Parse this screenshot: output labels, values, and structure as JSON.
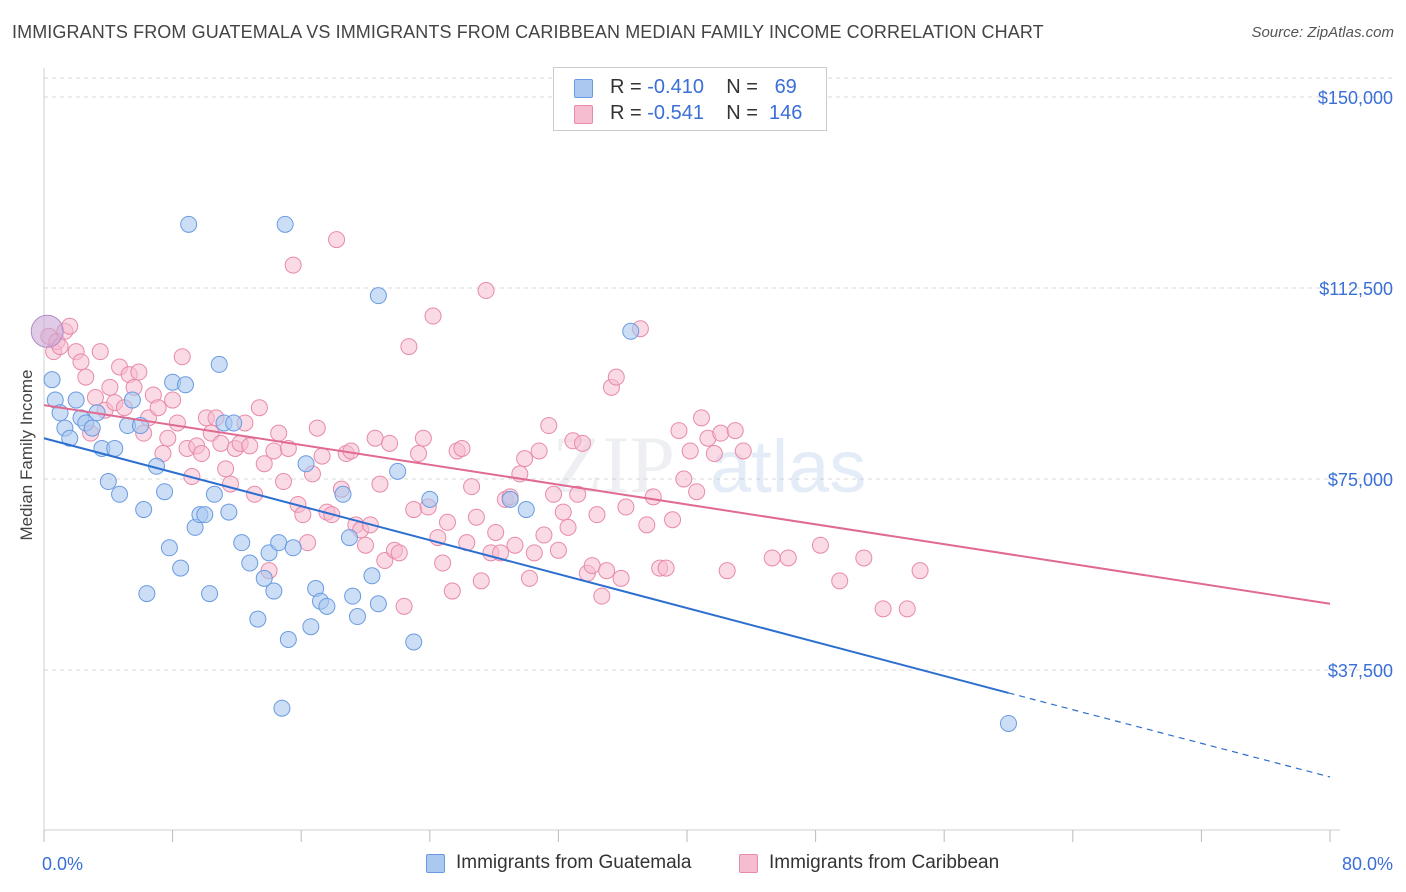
{
  "header": {
    "title": "IMMIGRANTS FROM GUATEMALA VS IMMIGRANTS FROM CARIBBEAN MEDIAN FAMILY INCOME CORRELATION CHART",
    "source": "Source: ZipAtlas.com"
  },
  "legend": {
    "row1": {
      "r_label": "R =",
      "r_value": "-0.410",
      "n_label": "N =",
      "n_value": "69"
    },
    "row2": {
      "r_label": "R =",
      "r_value": "-0.541",
      "n_label": "N =",
      "n_value": "146"
    }
  },
  "bottom_legend": {
    "guatemala": "Immigrants from Guatemala",
    "caribbean": "Immigrants from Caribbean"
  },
  "watermark": {
    "zip": "ZIP",
    "atlas": "atlas"
  },
  "colors": {
    "guatemala_fill": "#aac8f0",
    "guatemala_stroke": "#6a9be0",
    "guatemala_line": "#2d6fcf",
    "caribbean_fill": "#f6bcd0",
    "caribbean_stroke": "#e88aaa",
    "caribbean_line": "#e06a92",
    "axis_label": "#3a6fd8"
  },
  "chart_data": {
    "type": "scatter",
    "title": "IMMIGRANTS FROM GUATEMALA VS IMMIGRANTS FROM CARIBBEAN MEDIAN FAMILY INCOME CORRELATION CHART",
    "xlabel": "",
    "ylabel": "Median Family Income",
    "xlim": [
      0,
      80
    ],
    "ylim": [
      0,
      155000
    ],
    "x_tick_labels": [
      "0.0%",
      "80.0%"
    ],
    "y_ticks": [
      37500,
      75000,
      112500,
      150000
    ],
    "y_tick_labels": [
      "$37,500",
      "$75,000",
      "$112,500",
      "$150,000"
    ],
    "grid": "horizontal dashed",
    "legend_position": "top-center",
    "series": [
      {
        "name": "Immigrants from Guatemala",
        "R": -0.41,
        "N": 69,
        "trend": {
          "x0": 0,
          "y0": 83000,
          "x1": 60,
          "y1": 33000,
          "dashed_to_x": 80,
          "dashed_to_y": 16500
        },
        "points": [
          [
            0.2,
            104000
          ],
          [
            0.5,
            94500
          ],
          [
            0.7,
            90500
          ],
          [
            1.0,
            88000
          ],
          [
            1.3,
            85000
          ],
          [
            1.6,
            83000
          ],
          [
            2.0,
            90500
          ],
          [
            2.3,
            87000
          ],
          [
            2.6,
            86000
          ],
          [
            3.0,
            85000
          ],
          [
            3.3,
            88000
          ],
          [
            3.6,
            81000
          ],
          [
            4.0,
            74500
          ],
          [
            4.4,
            81000
          ],
          [
            4.7,
            72000
          ],
          [
            5.2,
            85500
          ],
          [
            5.5,
            90500
          ],
          [
            6.0,
            85500
          ],
          [
            6.2,
            69000
          ],
          [
            6.4,
            52500
          ],
          [
            7.0,
            77500
          ],
          [
            7.5,
            72500
          ],
          [
            7.8,
            61500
          ],
          [
            8.0,
            94000
          ],
          [
            8.5,
            57500
          ],
          [
            8.8,
            93500
          ],
          [
            9.0,
            125000
          ],
          [
            9.4,
            65500
          ],
          [
            9.7,
            68000
          ],
          [
            10.0,
            68000
          ],
          [
            10.3,
            52500
          ],
          [
            10.6,
            72000
          ],
          [
            10.9,
            97500
          ],
          [
            11.2,
            86000
          ],
          [
            11.5,
            68500
          ],
          [
            11.8,
            86000
          ],
          [
            12.3,
            62500
          ],
          [
            12.8,
            58500
          ],
          [
            13.3,
            47500
          ],
          [
            13.7,
            55500
          ],
          [
            14.0,
            60500
          ],
          [
            14.3,
            53000
          ],
          [
            14.6,
            62500
          ],
          [
            14.8,
            30000
          ],
          [
            15.0,
            125000
          ],
          [
            15.2,
            43500
          ],
          [
            15.5,
            61500
          ],
          [
            16.3,
            78000
          ],
          [
            16.6,
            46000
          ],
          [
            16.9,
            53500
          ],
          [
            17.2,
            51000
          ],
          [
            17.6,
            50000
          ],
          [
            18.6,
            72000
          ],
          [
            19.0,
            63500
          ],
          [
            19.2,
            52000
          ],
          [
            19.5,
            48000
          ],
          [
            20.4,
            56000
          ],
          [
            20.8,
            111000
          ],
          [
            20.8,
            50500
          ],
          [
            22.0,
            76500
          ],
          [
            23.0,
            43000
          ],
          [
            24.0,
            71000
          ],
          [
            29.0,
            71000
          ],
          [
            30.0,
            69000
          ],
          [
            36.5,
            104000
          ],
          [
            60.0,
            27000
          ]
        ]
      },
      {
        "name": "Immigrants from Caribbean",
        "R": -0.541,
        "N": 146,
        "trend": {
          "x0": 0,
          "y0": 89500,
          "x1": 80,
          "y1": 50500
        },
        "points": [
          [
            0.3,
            103000
          ],
          [
            0.6,
            100000
          ],
          [
            0.8,
            102000
          ],
          [
            1.0,
            101000
          ],
          [
            1.3,
            104000
          ],
          [
            1.6,
            105000
          ],
          [
            2.0,
            100000
          ],
          [
            2.3,
            98000
          ],
          [
            2.6,
            95000
          ],
          [
            2.9,
            84000
          ],
          [
            3.2,
            91000
          ],
          [
            3.5,
            100000
          ],
          [
            3.8,
            88500
          ],
          [
            4.1,
            93000
          ],
          [
            4.4,
            90000
          ],
          [
            4.7,
            97000
          ],
          [
            5.0,
            89000
          ],
          [
            5.3,
            95500
          ],
          [
            5.6,
            93000
          ],
          [
            5.9,
            96000
          ],
          [
            6.2,
            84000
          ],
          [
            6.5,
            87000
          ],
          [
            6.8,
            91500
          ],
          [
            7.1,
            89000
          ],
          [
            7.4,
            80000
          ],
          [
            7.7,
            83000
          ],
          [
            8.0,
            90500
          ],
          [
            8.3,
            86000
          ],
          [
            8.6,
            99000
          ],
          [
            8.9,
            81000
          ],
          [
            9.2,
            75500
          ],
          [
            9.5,
            81500
          ],
          [
            9.8,
            80000
          ],
          [
            10.1,
            87000
          ],
          [
            10.4,
            84000
          ],
          [
            10.7,
            87000
          ],
          [
            11.0,
            82000
          ],
          [
            11.3,
            77000
          ],
          [
            11.6,
            74000
          ],
          [
            11.9,
            81000
          ],
          [
            12.2,
            82000
          ],
          [
            12.5,
            86000
          ],
          [
            12.8,
            81500
          ],
          [
            13.1,
            72000
          ],
          [
            13.4,
            89000
          ],
          [
            13.7,
            78000
          ],
          [
            14.0,
            57000
          ],
          [
            14.3,
            80500
          ],
          [
            14.6,
            84000
          ],
          [
            14.9,
            74500
          ],
          [
            15.2,
            81000
          ],
          [
            15.5,
            117000
          ],
          [
            15.8,
            70000
          ],
          [
            16.1,
            68000
          ],
          [
            16.4,
            62500
          ],
          [
            16.7,
            76000
          ],
          [
            17.0,
            85000
          ],
          [
            17.3,
            79500
          ],
          [
            17.6,
            68500
          ],
          [
            17.9,
            68000
          ],
          [
            18.2,
            122000
          ],
          [
            18.5,
            73000
          ],
          [
            18.8,
            80000
          ],
          [
            19.1,
            80500
          ],
          [
            19.4,
            66000
          ],
          [
            19.7,
            65000
          ],
          [
            20.0,
            62000
          ],
          [
            20.3,
            66000
          ],
          [
            20.6,
            83000
          ],
          [
            20.9,
            74000
          ],
          [
            21.2,
            59000
          ],
          [
            21.5,
            82000
          ],
          [
            21.8,
            61000
          ],
          [
            22.1,
            60500
          ],
          [
            22.4,
            50000
          ],
          [
            22.7,
            101000
          ],
          [
            23.0,
            69000
          ],
          [
            23.3,
            80000
          ],
          [
            23.6,
            83000
          ],
          [
            23.9,
            69500
          ],
          [
            24.2,
            107000
          ],
          [
            24.5,
            63500
          ],
          [
            24.8,
            58500
          ],
          [
            25.1,
            66500
          ],
          [
            25.4,
            53000
          ],
          [
            25.7,
            80500
          ],
          [
            26.0,
            81000
          ],
          [
            26.3,
            62500
          ],
          [
            26.6,
            73500
          ],
          [
            26.9,
            67500
          ],
          [
            27.2,
            55000
          ],
          [
            27.5,
            112000
          ],
          [
            27.8,
            60500
          ],
          [
            28.1,
            64500
          ],
          [
            28.4,
            60500
          ],
          [
            28.7,
            71000
          ],
          [
            29.0,
            71500
          ],
          [
            29.3,
            62000
          ],
          [
            29.6,
            76000
          ],
          [
            29.9,
            79000
          ],
          [
            30.2,
            55500
          ],
          [
            30.5,
            60500
          ],
          [
            30.8,
            80500
          ],
          [
            31.1,
            64000
          ],
          [
            31.4,
            85500
          ],
          [
            31.7,
            72000
          ],
          [
            32.0,
            61000
          ],
          [
            32.3,
            68500
          ],
          [
            32.6,
            65500
          ],
          [
            32.9,
            82500
          ],
          [
            33.2,
            72000
          ],
          [
            33.5,
            82000
          ],
          [
            33.8,
            56500
          ],
          [
            34.1,
            58000
          ],
          [
            34.4,
            68000
          ],
          [
            34.7,
            52000
          ],
          [
            35.0,
            57000
          ],
          [
            35.3,
            93000
          ],
          [
            35.6,
            95000
          ],
          [
            35.9,
            55500
          ],
          [
            36.2,
            69500
          ],
          [
            37.1,
            104500
          ],
          [
            37.5,
            66000
          ],
          [
            37.9,
            71500
          ],
          [
            38.3,
            57500
          ],
          [
            38.7,
            57500
          ],
          [
            39.1,
            67000
          ],
          [
            39.5,
            84500
          ],
          [
            39.8,
            75000
          ],
          [
            40.2,
            80500
          ],
          [
            40.6,
            72500
          ],
          [
            40.9,
            87000
          ],
          [
            41.3,
            83000
          ],
          [
            41.7,
            80000
          ],
          [
            42.1,
            84000
          ],
          [
            42.5,
            57000
          ],
          [
            43.0,
            84500
          ],
          [
            43.5,
            80500
          ],
          [
            45.3,
            59500
          ],
          [
            46.3,
            59500
          ],
          [
            48.3,
            62000
          ],
          [
            49.5,
            55000
          ],
          [
            51.0,
            59500
          ],
          [
            52.2,
            49500
          ],
          [
            53.7,
            49500
          ],
          [
            54.5,
            57000
          ]
        ]
      }
    ]
  }
}
